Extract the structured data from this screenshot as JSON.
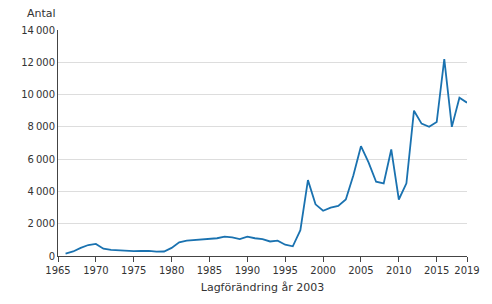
{
  "chart_data": {
    "type": "line",
    "x": [
      1966,
      1967,
      1968,
      1969,
      1970,
      1971,
      1972,
      1973,
      1974,
      1975,
      1976,
      1977,
      1978,
      1979,
      1980,
      1981,
      1982,
      1983,
      1984,
      1985,
      1986,
      1987,
      1988,
      1989,
      1990,
      1991,
      1992,
      1993,
      1994,
      1995,
      1996,
      1997,
      1998,
      1999,
      2000,
      2001,
      2002,
      2003,
      2004,
      2005,
      2006,
      2007,
      2008,
      2009,
      2010,
      2011,
      2012,
      2013,
      2014,
      2015,
      2016,
      2017,
      2018,
      2019
    ],
    "values": [
      150,
      280,
      500,
      680,
      750,
      450,
      380,
      350,
      320,
      300,
      310,
      320,
      270,
      280,
      500,
      850,
      950,
      980,
      1000,
      1050,
      1100,
      1200,
      1150,
      1050,
      1200,
      1100,
      1050,
      900,
      950,
      700,
      600,
      1600,
      4700,
      3200,
      2800,
      3000,
      3100,
      3500,
      5000,
      6800,
      5800,
      4600,
      4500,
      6600,
      3500,
      4500,
      9000,
      8200,
      8000,
      8300,
      12200,
      8000,
      9800,
      9500
    ],
    "color": "#1a72b0",
    "xlabel": "Lagförändring år 2003",
    "ylabel": "Antal",
    "xlim": [
      1965,
      2019
    ],
    "ylim": [
      0,
      14000
    ],
    "xticks": [
      1965,
      1970,
      1975,
      1980,
      1985,
      1990,
      1995,
      2000,
      2005,
      2010,
      2015,
      2019
    ],
    "yticks": [
      0,
      {
        "value": 2000,
        "label": "2 000"
      },
      {
        "value": 4000,
        "label": "4 000"
      },
      {
        "value": 6000,
        "label": "6 000"
      },
      {
        "value": 8000,
        "label": "8 000"
      },
      {
        "value": 10000,
        "label": "10 000"
      },
      {
        "value": 12000,
        "label": "12 000"
      },
      {
        "value": 14000,
        "label": "14 000"
      }
    ],
    "grid": true
  }
}
